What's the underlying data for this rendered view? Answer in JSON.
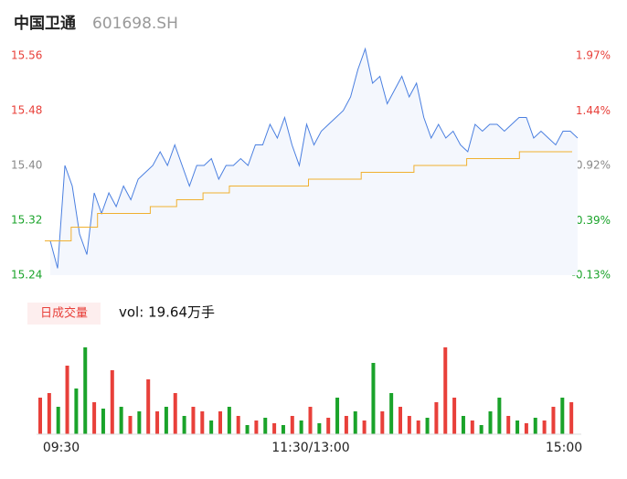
{
  "chart_data": {
    "type": "intraday",
    "title": "中国卫通",
    "subtitle": "601698.SH",
    "ylim": [
      15.24,
      15.56
    ],
    "yticks": [
      {
        "value": 15.56,
        "label": "15.56"
      },
      {
        "value": 15.48,
        "label": "15.48"
      },
      {
        "value": 15.4,
        "label": "15.40"
      },
      {
        "value": 15.32,
        "label": "15.32"
      },
      {
        "value": 15.24,
        "label": "15.24"
      }
    ],
    "y2lim": [
      -0.13,
      1.97
    ],
    "y2ticks": [
      {
        "value": 1.97,
        "label": "1.97%"
      },
      {
        "value": 1.44,
        "label": "1.44%"
      },
      {
        "value": 0.92,
        "label": "0.92%"
      },
      {
        "value": 0.39,
        "label": "0.39%"
      },
      {
        "value": -0.13,
        "label": "-0.13%"
      }
    ],
    "up_color": "#e8403a",
    "down_color": "#1aa32a",
    "flat_color": "#888888",
    "x_labels": [
      "09:30",
      "11:30/13:00",
      "15:00"
    ],
    "series": [
      {
        "name": "price",
        "color": "#4a7fe0",
        "values": [
          15.29,
          15.25,
          15.4,
          15.37,
          15.3,
          15.27,
          15.36,
          15.33,
          15.36,
          15.34,
          15.37,
          15.35,
          15.38,
          15.39,
          15.4,
          15.42,
          15.4,
          15.43,
          15.4,
          15.37,
          15.4,
          15.4,
          15.41,
          15.38,
          15.4,
          15.4,
          15.41,
          15.4,
          15.43,
          15.43,
          15.46,
          15.44,
          15.47,
          15.43,
          15.4,
          15.46,
          15.43,
          15.45,
          15.46,
          15.47,
          15.48,
          15.5,
          15.54,
          15.57,
          15.52,
          15.53,
          15.49,
          15.51,
          15.53,
          15.5,
          15.52,
          15.47,
          15.44,
          15.46,
          15.44,
          15.45,
          15.43,
          15.42,
          15.46,
          15.45,
          15.46,
          15.46,
          15.45,
          15.46,
          15.47,
          15.47,
          15.44,
          15.45,
          15.44,
          15.43,
          15.45,
          15.45,
          15.44
        ]
      },
      {
        "name": "average",
        "color": "#f0b030",
        "values": [
          15.29,
          15.31,
          15.33,
          15.33,
          15.34,
          15.35,
          15.36,
          15.37,
          15.37,
          15.37,
          15.38,
          15.38,
          15.39,
          15.39,
          15.4,
          15.4,
          15.41,
          15.41,
          15.42,
          15.42,
          15.42
        ]
      }
    ],
    "volume_label": "日成交量",
    "volume_text": "vol: 19.64万手",
    "volume": {
      "values": [
        40,
        45,
        30,
        75,
        50,
        95,
        35,
        28,
        70,
        30,
        20,
        25,
        60,
        25,
        30,
        45,
        20,
        30,
        25,
        15,
        25,
        30,
        20,
        10,
        15,
        18,
        12,
        10,
        20,
        15,
        30,
        12,
        18,
        40,
        20,
        25,
        15,
        78,
        25,
        45,
        30,
        20,
        15,
        18,
        35,
        95,
        40,
        20,
        15,
        10,
        25,
        40,
        20,
        15,
        12,
        18,
        15,
        30,
        40,
        35
      ],
      "colors": [
        "#e8403a",
        "#e8403a",
        "#1aa32a",
        "#e8403a",
        "#1aa32a",
        "#1aa32a",
        "#e8403a",
        "#1aa32a",
        "#e8403a",
        "#1aa32a",
        "#e8403a",
        "#1aa32a",
        "#e8403a",
        "#e8403a",
        "#1aa32a",
        "#e8403a",
        "#1aa32a",
        "#e8403a",
        "#e8403a",
        "#1aa32a",
        "#e8403a",
        "#1aa32a",
        "#e8403a",
        "#1aa32a",
        "#e8403a",
        "#1aa32a",
        "#e8403a",
        "#1aa32a",
        "#e8403a",
        "#1aa32a",
        "#e8403a",
        "#1aa32a",
        "#e8403a",
        "#1aa32a",
        "#e8403a",
        "#1aa32a",
        "#e8403a",
        "#1aa32a",
        "#e8403a",
        "#1aa32a",
        "#e8403a",
        "#e8403a",
        "#e8403a",
        "#1aa32a",
        "#e8403a",
        "#e8403a",
        "#e8403a",
        "#1aa32a",
        "#e8403a",
        "#1aa32a",
        "#1aa32a",
        "#1aa32a",
        "#e8403a",
        "#1aa32a",
        "#e8403a",
        "#1aa32a",
        "#e8403a",
        "#e8403a",
        "#1aa32a",
        "#e8403a"
      ]
    }
  }
}
